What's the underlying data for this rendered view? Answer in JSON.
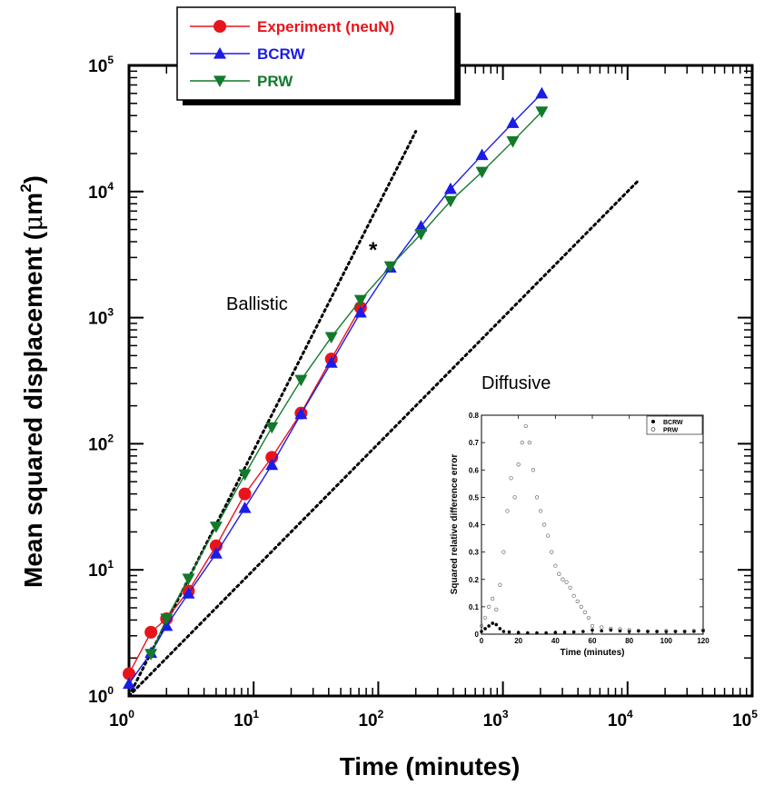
{
  "chart_data": [
    {
      "type": "line",
      "scale": "log-log",
      "xlabel": "Time (minutes)",
      "ylabel": "Mean squared displacement (μm²)",
      "ylabel_base": "Mean squared displacement (",
      "ylabel_mu": "μ",
      "ylabel_unit": "m",
      "ylabel_sup": "2",
      "ylabel_close": ")",
      "xlim": [
        1,
        100000
      ],
      "ylim": [
        1,
        100000
      ],
      "x_tick_exponents": [
        "0",
        "1",
        "2",
        "3",
        "4",
        "5"
      ],
      "y_tick_exponents": [
        "0",
        "1",
        "2",
        "3",
        "4",
        "5"
      ],
      "tick_base": "10",
      "grid": false,
      "legend_position": "top-left (above plot)",
      "series": [
        {
          "name": "Experiment (neuN)",
          "color": "#e8141c",
          "marker": "circle",
          "x": [
            1,
            1.5,
            2,
            3,
            5,
            8.5,
            14,
            24,
            42,
            72
          ],
          "y": [
            1.5,
            3.2,
            4.1,
            6.8,
            15.5,
            40,
            78,
            175,
            470,
            1200
          ]
        },
        {
          "name": "BCRW",
          "color": "#1c1ce6",
          "marker": "triangle-up",
          "x": [
            1,
            1.5,
            2,
            3,
            5,
            8.5,
            14,
            24,
            42,
            72,
            125,
            220,
            380,
            680,
            1200,
            2050
          ],
          "y": [
            1.25,
            2.2,
            3.6,
            6.5,
            13.5,
            31,
            68,
            172,
            440,
            1100,
            2500,
            5300,
            10500,
            19500,
            35000,
            60000
          ]
        },
        {
          "name": "PRW",
          "color": "#127a2b",
          "marker": "triangle-down",
          "x": [
            1.5,
            2,
            3,
            5,
            8.5,
            14,
            24,
            42,
            72,
            125,
            220,
            380,
            680,
            1200,
            2050
          ],
          "y": [
            2.15,
            4.1,
            8.5,
            22,
            57,
            135,
            320,
            700,
            1380,
            2550,
            4600,
            8400,
            14300,
            25000,
            43000
          ]
        }
      ],
      "reference_lines": [
        {
          "label": "Ballistic",
          "x": [
            1,
            200
          ],
          "y": [
            1,
            30000
          ],
          "style": "dotted"
        },
        {
          "label": "Diffusive",
          "x": [
            1,
            12000
          ],
          "y": [
            1,
            12000
          ],
          "style": "dotted"
        }
      ],
      "annotations": [
        {
          "text": "Ballistic"
        },
        {
          "text": "Diffusive"
        },
        {
          "text": "*"
        }
      ]
    },
    {
      "type": "scatter",
      "xlabel": "Time (minutes)",
      "ylabel": "Squared relative difference error",
      "xlim": [
        0,
        120
      ],
      "ylim": [
        0,
        0.8
      ],
      "x_ticks": [
        "0",
        "20",
        "40",
        "60",
        "80",
        "100",
        "120"
      ],
      "y_ticks": [
        "0",
        "0.1",
        "0.2",
        "0.3",
        "0.4",
        "0.5",
        "0.6",
        "0.7",
        "0.8"
      ],
      "legend_position": "top-right",
      "series": [
        {
          "name": "BCRW",
          "marker": "filled-circle",
          "x": [
            0,
            2,
            4,
            6,
            8,
            10,
            12,
            15,
            20,
            25,
            30,
            35,
            40,
            45,
            50,
            55,
            60,
            65,
            70,
            75,
            80,
            85,
            90,
            95,
            100,
            105,
            110,
            115,
            120
          ],
          "y": [
            0.01,
            0.02,
            0.03,
            0.04,
            0.035,
            0.02,
            0.01,
            0.008,
            0.006,
            0.005,
            0.005,
            0.005,
            0.006,
            0.007,
            0.008,
            0.01,
            0.015,
            0.012,
            0.015,
            0.012,
            0.01,
            0.012,
            0.01,
            0.009,
            0.009,
            0.01,
            0.009,
            0.01,
            0.012
          ]
        },
        {
          "name": "PRW",
          "marker": "open-circle",
          "x": [
            0,
            2,
            4,
            6,
            8,
            10,
            12,
            14,
            16,
            18,
            20,
            22,
            24,
            26,
            28,
            30,
            32,
            34,
            36,
            38,
            40,
            42,
            44,
            46,
            48,
            50,
            52,
            54,
            56,
            58,
            60,
            65,
            70,
            75,
            80,
            85,
            90,
            95,
            100,
            105,
            110,
            115,
            120
          ],
          "y": [
            0.03,
            0.06,
            0.1,
            0.13,
            0.09,
            0.18,
            0.3,
            0.45,
            0.57,
            0.5,
            0.62,
            0.7,
            0.76,
            0.7,
            0.6,
            0.5,
            0.45,
            0.4,
            0.36,
            0.3,
            0.25,
            0.22,
            0.2,
            0.19,
            0.17,
            0.14,
            0.12,
            0.1,
            0.08,
            0.06,
            0.03,
            0.025,
            0.02,
            0.018,
            0.015,
            0.012,
            0.01,
            0.01,
            0.012,
            0.01,
            0.01,
            0.012,
            0.015
          ]
        }
      ]
    }
  ]
}
